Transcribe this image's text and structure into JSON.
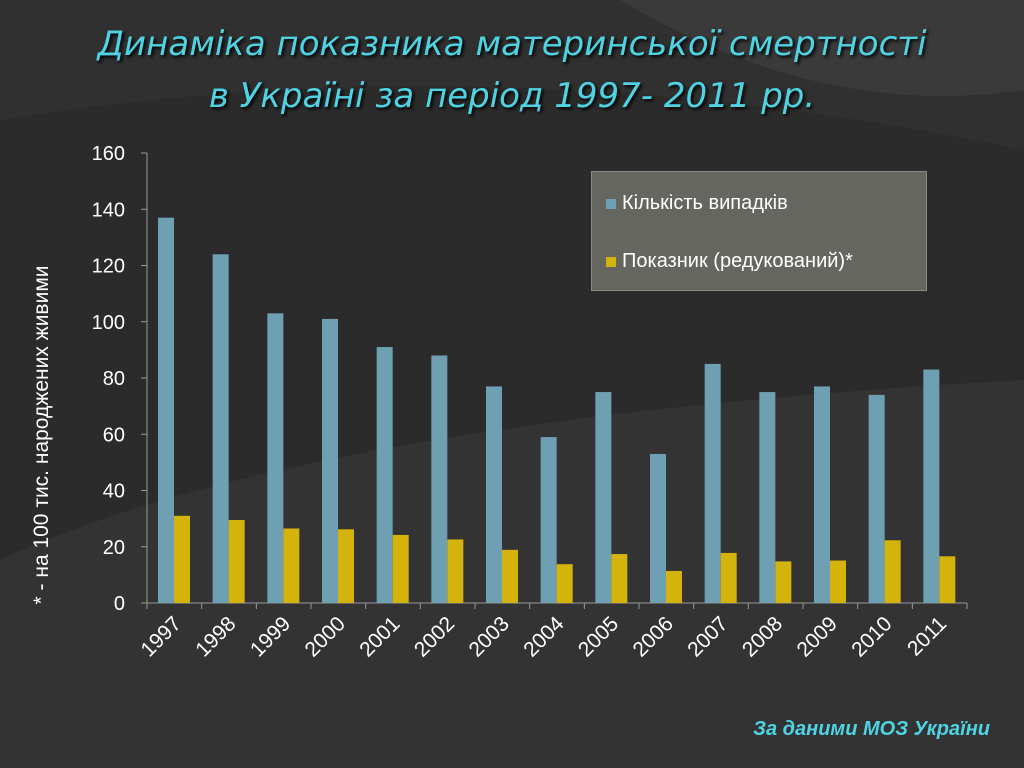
{
  "title": {
    "line1": "Динаміка показника материнської смертності",
    "line2": "в Україні за період 1997- 2011 рр."
  },
  "source_note": "За даними МОЗ України",
  "colors": {
    "background": "#2b2b2b",
    "title": "#4fd3e3",
    "series1": "#6e9fb3",
    "series2": "#d4b40c",
    "legend_bg": "#666660",
    "text": "#ffffff"
  },
  "chart_data": {
    "type": "bar",
    "title": "Динаміка показника материнської смертності в Україні за період 1997- 2011 рр.",
    "xlabel": "",
    "ylabel": "* - на 100 тис. народжених живими",
    "ylim": [
      0,
      160
    ],
    "yticks": [
      0,
      20,
      40,
      60,
      80,
      100,
      120,
      140,
      160
    ],
    "grid": false,
    "legend_position": "top-right",
    "categories": [
      "1997",
      "1998",
      "1999",
      "2000",
      "2001",
      "2002",
      "2003",
      "2004",
      "2005",
      "2006",
      "2007",
      "2008",
      "2009",
      "2010",
      "2011"
    ],
    "series": [
      {
        "name": "Кількість випадків",
        "values": [
          137,
          124,
          103,
          101,
          91,
          88,
          77,
          59,
          75,
          53,
          85,
          75,
          77,
          74,
          83
        ]
      },
      {
        "name": "Показник (редукований)*",
        "values": [
          31,
          29.5,
          26.5,
          26.2,
          24.2,
          22.6,
          18.9,
          13.8,
          17.4,
          11.4,
          17.8,
          14.8,
          15.1,
          22.3,
          16.6
        ]
      }
    ]
  }
}
